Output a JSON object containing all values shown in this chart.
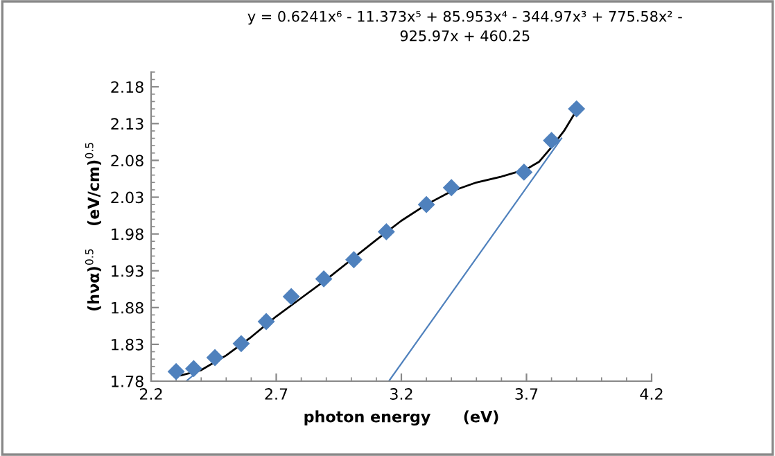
{
  "chart_data": {
    "type": "scatter",
    "xlabel": "photon energy      (eV)",
    "ylabel": "(hνα)$^{0.5}$    (eV/cm)$^{0.5}$",
    "annotations": [
      "y = 0.6241x⁶ - 11.373x⁵ + 85.953x⁴ - 344.97x³ + 775.58x² -\n925.97x + 460.25"
    ],
    "xlim": [
      2.2,
      4.2
    ],
    "xticks": [
      2.2,
      2.7,
      3.2,
      3.7,
      4.2
    ],
    "ylim": [
      1.78,
      2.2
    ],
    "yticks": [
      1.78,
      1.83,
      1.88,
      1.93,
      1.98,
      2.03,
      2.08,
      2.13,
      2.18
    ],
    "grid": false,
    "legend": false,
    "marker": "diamond",
    "series": [
      {
        "color": "#4f81bd",
        "x": [
          2.3,
          2.37,
          2.455,
          2.56,
          2.66,
          2.76,
          2.89,
          3.01,
          3.14,
          3.3,
          3.4,
          3.69,
          3.8,
          3.9
        ],
        "values": [
          1.793,
          1.797,
          1.812,
          1.831,
          1.861,
          1.895,
          1.919,
          1.945,
          1.983,
          2.02,
          2.043,
          2.064,
          2.107,
          2.15
        ]
      },
      {
        "type": "line",
        "color": "#000000",
        "marker": "none",
        "x": [
          2.32,
          2.4,
          2.5,
          2.6,
          2.7,
          2.8,
          2.9,
          3.0,
          3.1,
          3.2,
          3.3,
          3.4,
          3.5,
          3.6,
          3.7,
          3.75,
          3.8,
          3.85,
          3.9
        ],
        "values": [
          1.788,
          1.795,
          1.815,
          1.84,
          1.868,
          1.893,
          1.918,
          1.945,
          1.972,
          1.998,
          2.02,
          2.038,
          2.05,
          2.058,
          2.068,
          2.078,
          2.098,
          2.12,
          2.148
        ]
      },
      {
        "type": "line",
        "color": "#4f81bd",
        "marker": "none",
        "x": [
          3.15,
          3.84
        ],
        "values": [
          1.78,
          2.11
        ]
      },
      {
        "type": "line",
        "color": "#4f81bd",
        "marker": "none",
        "x": [
          2.34,
          2.4
        ],
        "values": [
          1.78,
          1.797
        ]
      }
    ]
  }
}
